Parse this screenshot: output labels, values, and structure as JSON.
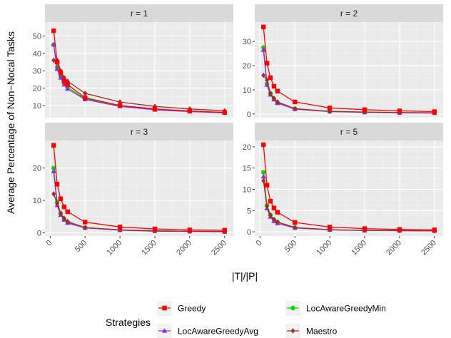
{
  "chart_data": {
    "type": "line",
    "ylabel": "Average Percentage of Non−Nocal Tasks",
    "xlabel": "|T|/|P|",
    "x_ticks": [
      0,
      500,
      1000,
      1500,
      2000,
      2500
    ],
    "x_tick_labels": [
      "0",
      "500",
      "1000",
      "1500",
      "2000",
      "2500"
    ],
    "xlim": [
      -75,
      2625
    ],
    "grid": true,
    "legend": {
      "title": "Strategies",
      "position": "bottom",
      "entries": [
        "Greedy",
        "LocAwareGreedyAvg",
        "LocAwareGreedyMin",
        "Maestro"
      ]
    },
    "series_styles": [
      {
        "name": "Greedy",
        "color": "#ff0000",
        "marker": "square"
      },
      {
        "name": "LocAwareGreedyAvg",
        "color": "#8b2be2",
        "marker": "triangle"
      },
      {
        "name": "LocAwareGreedyMin",
        "color": "#00dd00",
        "marker": "circle"
      },
      {
        "name": "Maestro",
        "color": "#a52a2a",
        "marker": "diamond"
      }
    ],
    "x": [
      50,
      100,
      150,
      200,
      250,
      500,
      1000,
      1500,
      2000,
      2500
    ],
    "panels": [
      {
        "label": "r = 1",
        "ylim": [
          3,
          58
        ],
        "y_ticks": [
          10,
          20,
          30,
          40,
          50
        ],
        "series": [
          {
            "name": "Greedy",
            "values": [
              53,
              35,
              29,
              24,
              22,
              14.5,
              10,
              8,
              6.8,
              6
            ]
          },
          {
            "name": "LocAwareGreedyAvg",
            "values": [
              45,
              31,
              26,
              22,
              19.5,
              13.5,
              9.5,
              7.5,
              6.5,
              5.8
            ]
          },
          {
            "name": "LocAwareGreedyMin",
            "values": [
              45,
              32,
              27,
              23,
              20.5,
              14,
              9.8,
              7.8,
              6.8,
              6
            ]
          },
          {
            "name": "Maestro",
            "values": [
              36,
              36,
              30,
              26,
              24,
              17,
              12,
              9.5,
              8,
              7
            ]
          }
        ]
      },
      {
        "label": "r = 2",
        "ylim": [
          -1.5,
          38
        ],
        "y_ticks": [
          0,
          10,
          20,
          30
        ],
        "series": [
          {
            "name": "Greedy",
            "values": [
              36,
              21,
              15,
              11.5,
              9.5,
              5,
              2.5,
              1.8,
              1.3,
              1
            ]
          },
          {
            "name": "LocAwareGreedyAvg",
            "values": [
              26.5,
              12,
              8,
              6,
              4.5,
              2,
              1,
              0.7,
              0.5,
              0.4
            ]
          },
          {
            "name": "LocAwareGreedyMin",
            "values": [
              27.5,
              12.5,
              8.5,
              6.3,
              4.8,
              2.2,
              1.1,
              0.8,
              0.6,
              0.5
            ]
          },
          {
            "name": "Maestro",
            "values": [
              16,
              14,
              8.5,
              6.5,
              5,
              2.2,
              1.1,
              0.8,
              0.6,
              0.5
            ]
          }
        ]
      },
      {
        "label": "r = 3",
        "ylim": [
          -1,
          28.5
        ],
        "y_ticks": [
          0,
          10,
          20
        ],
        "series": [
          {
            "name": "Greedy",
            "values": [
              27,
              15,
              10.5,
              8,
              6.5,
              3.3,
              1.8,
              1.2,
              0.9,
              0.8
            ]
          },
          {
            "name": "LocAwareGreedyAvg",
            "values": [
              19,
              8.5,
              5.5,
              4,
              3,
              1.5,
              0.8,
              0.5,
              0.4,
              0.3
            ]
          },
          {
            "name": "LocAwareGreedyMin",
            "values": [
              20,
              9.5,
              6,
              4.3,
              3.3,
              1.6,
              0.9,
              0.6,
              0.5,
              0.4
            ]
          },
          {
            "name": "Maestro",
            "values": [
              12,
              9,
              6,
              4.5,
              3.5,
              1.6,
              0.9,
              0.6,
              0.5,
              0.4
            ]
          }
        ]
      },
      {
        "label": "r = 5",
        "ylim": [
          -1,
          21.5
        ],
        "y_ticks": [
          0,
          5,
          10,
          15,
          20
        ],
        "series": [
          {
            "name": "Greedy",
            "values": [
              20.5,
              11,
              7.2,
              5.6,
              4.6,
              2.2,
              1.1,
              0.75,
              0.55,
              0.45
            ]
          },
          {
            "name": "LocAwareGreedyAvg",
            "values": [
              13,
              5.5,
              3.5,
              2.5,
              2,
              0.9,
              0.45,
              0.3,
              0.25,
              0.2
            ]
          },
          {
            "name": "LocAwareGreedyMin",
            "values": [
              14,
              6.2,
              4,
              2.9,
              2.3,
              1,
              0.5,
              0.35,
              0.28,
              0.22
            ]
          },
          {
            "name": "Maestro",
            "values": [
              12,
              6,
              3.8,
              2.9,
              2.3,
              1,
              0.5,
              0.35,
              0.28,
              0.22
            ]
          }
        ]
      }
    ]
  }
}
